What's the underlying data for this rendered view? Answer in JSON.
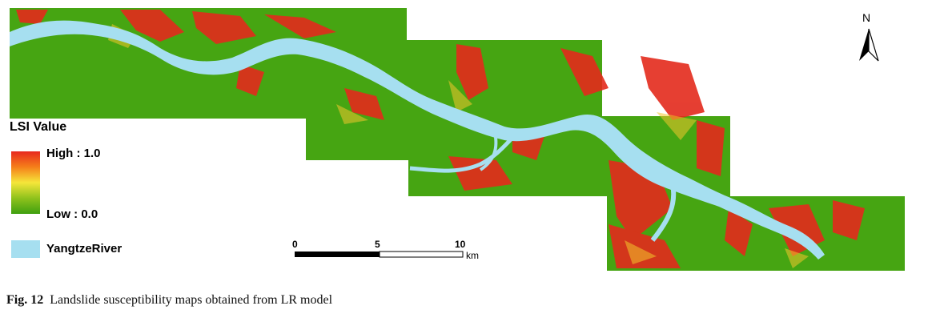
{
  "legend": {
    "title": "LSI Value",
    "high_label": "High : 1.0",
    "low_label": "Low : 0.0",
    "river_label": "YangtzeRiver"
  },
  "north_arrow": {
    "label": "N"
  },
  "scale_bar": {
    "labels": [
      "0",
      "5",
      "10"
    ],
    "unit": "km"
  },
  "caption": {
    "prefix": "Fig. 12",
    "text": "Landslide susceptibility maps obtained from LR model"
  },
  "colors": {
    "high": "#e8281e",
    "mid": "#f5e63a",
    "low": "#3fa010",
    "river": "#a6dff0"
  }
}
